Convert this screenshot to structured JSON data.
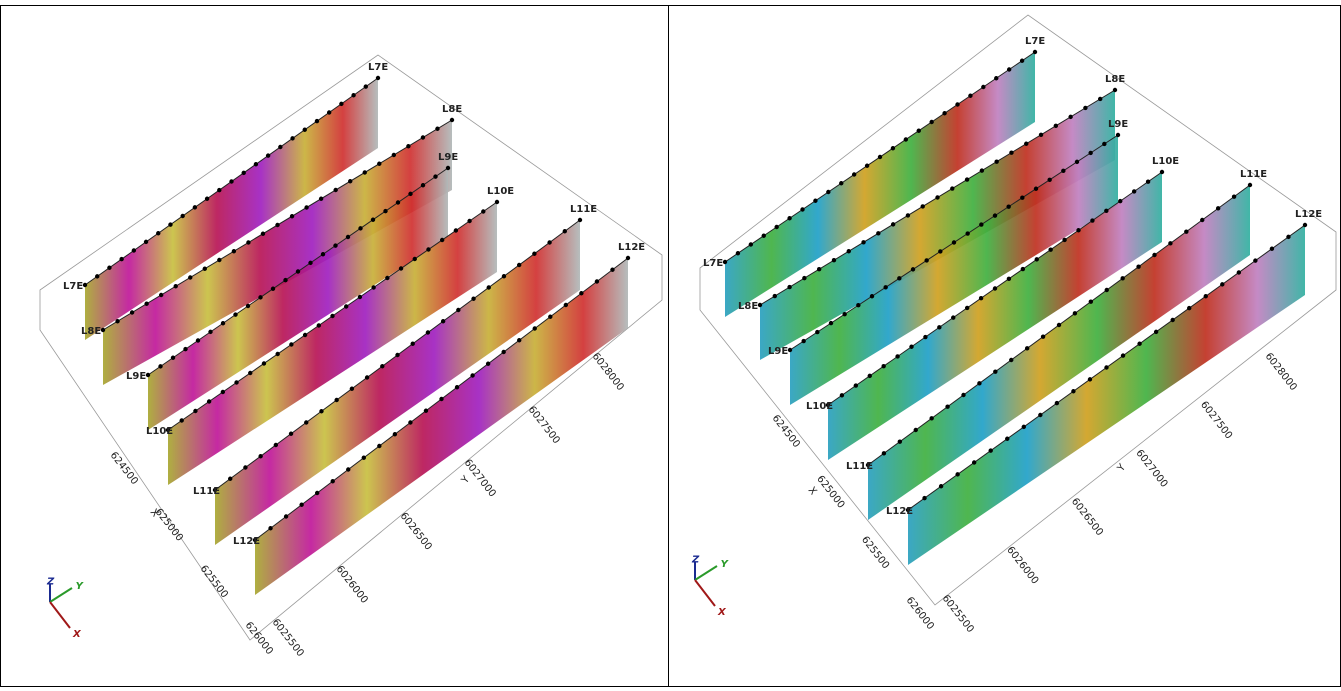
{
  "panels": [
    {
      "line_labels": [
        "L7E",
        "L8E",
        "L9E",
        "L10E",
        "L11E",
        "L12E"
      ],
      "x_axis": {
        "label": "X",
        "ticks": [
          624500,
          625000,
          625500,
          626000
        ]
      },
      "y_axis": {
        "label": "Y",
        "ticks": [
          6025500,
          6026000,
          6026500,
          6027000,
          6027500,
          6028000
        ]
      },
      "triad": [
        "Z",
        "Y",
        "X"
      ]
    },
    {
      "line_labels": [
        "L7E",
        "L8E",
        "L9E",
        "L10E",
        "L11E",
        "L12E"
      ],
      "x_axis": {
        "label": "X",
        "ticks": [
          624500,
          625000,
          625500,
          626000
        ]
      },
      "y_axis": {
        "label": "Y",
        "ticks": [
          6025500,
          6026000,
          6026500,
          6027000,
          6027500,
          6028000
        ]
      },
      "triad": [
        "Z",
        "Y",
        "X"
      ]
    }
  ]
}
